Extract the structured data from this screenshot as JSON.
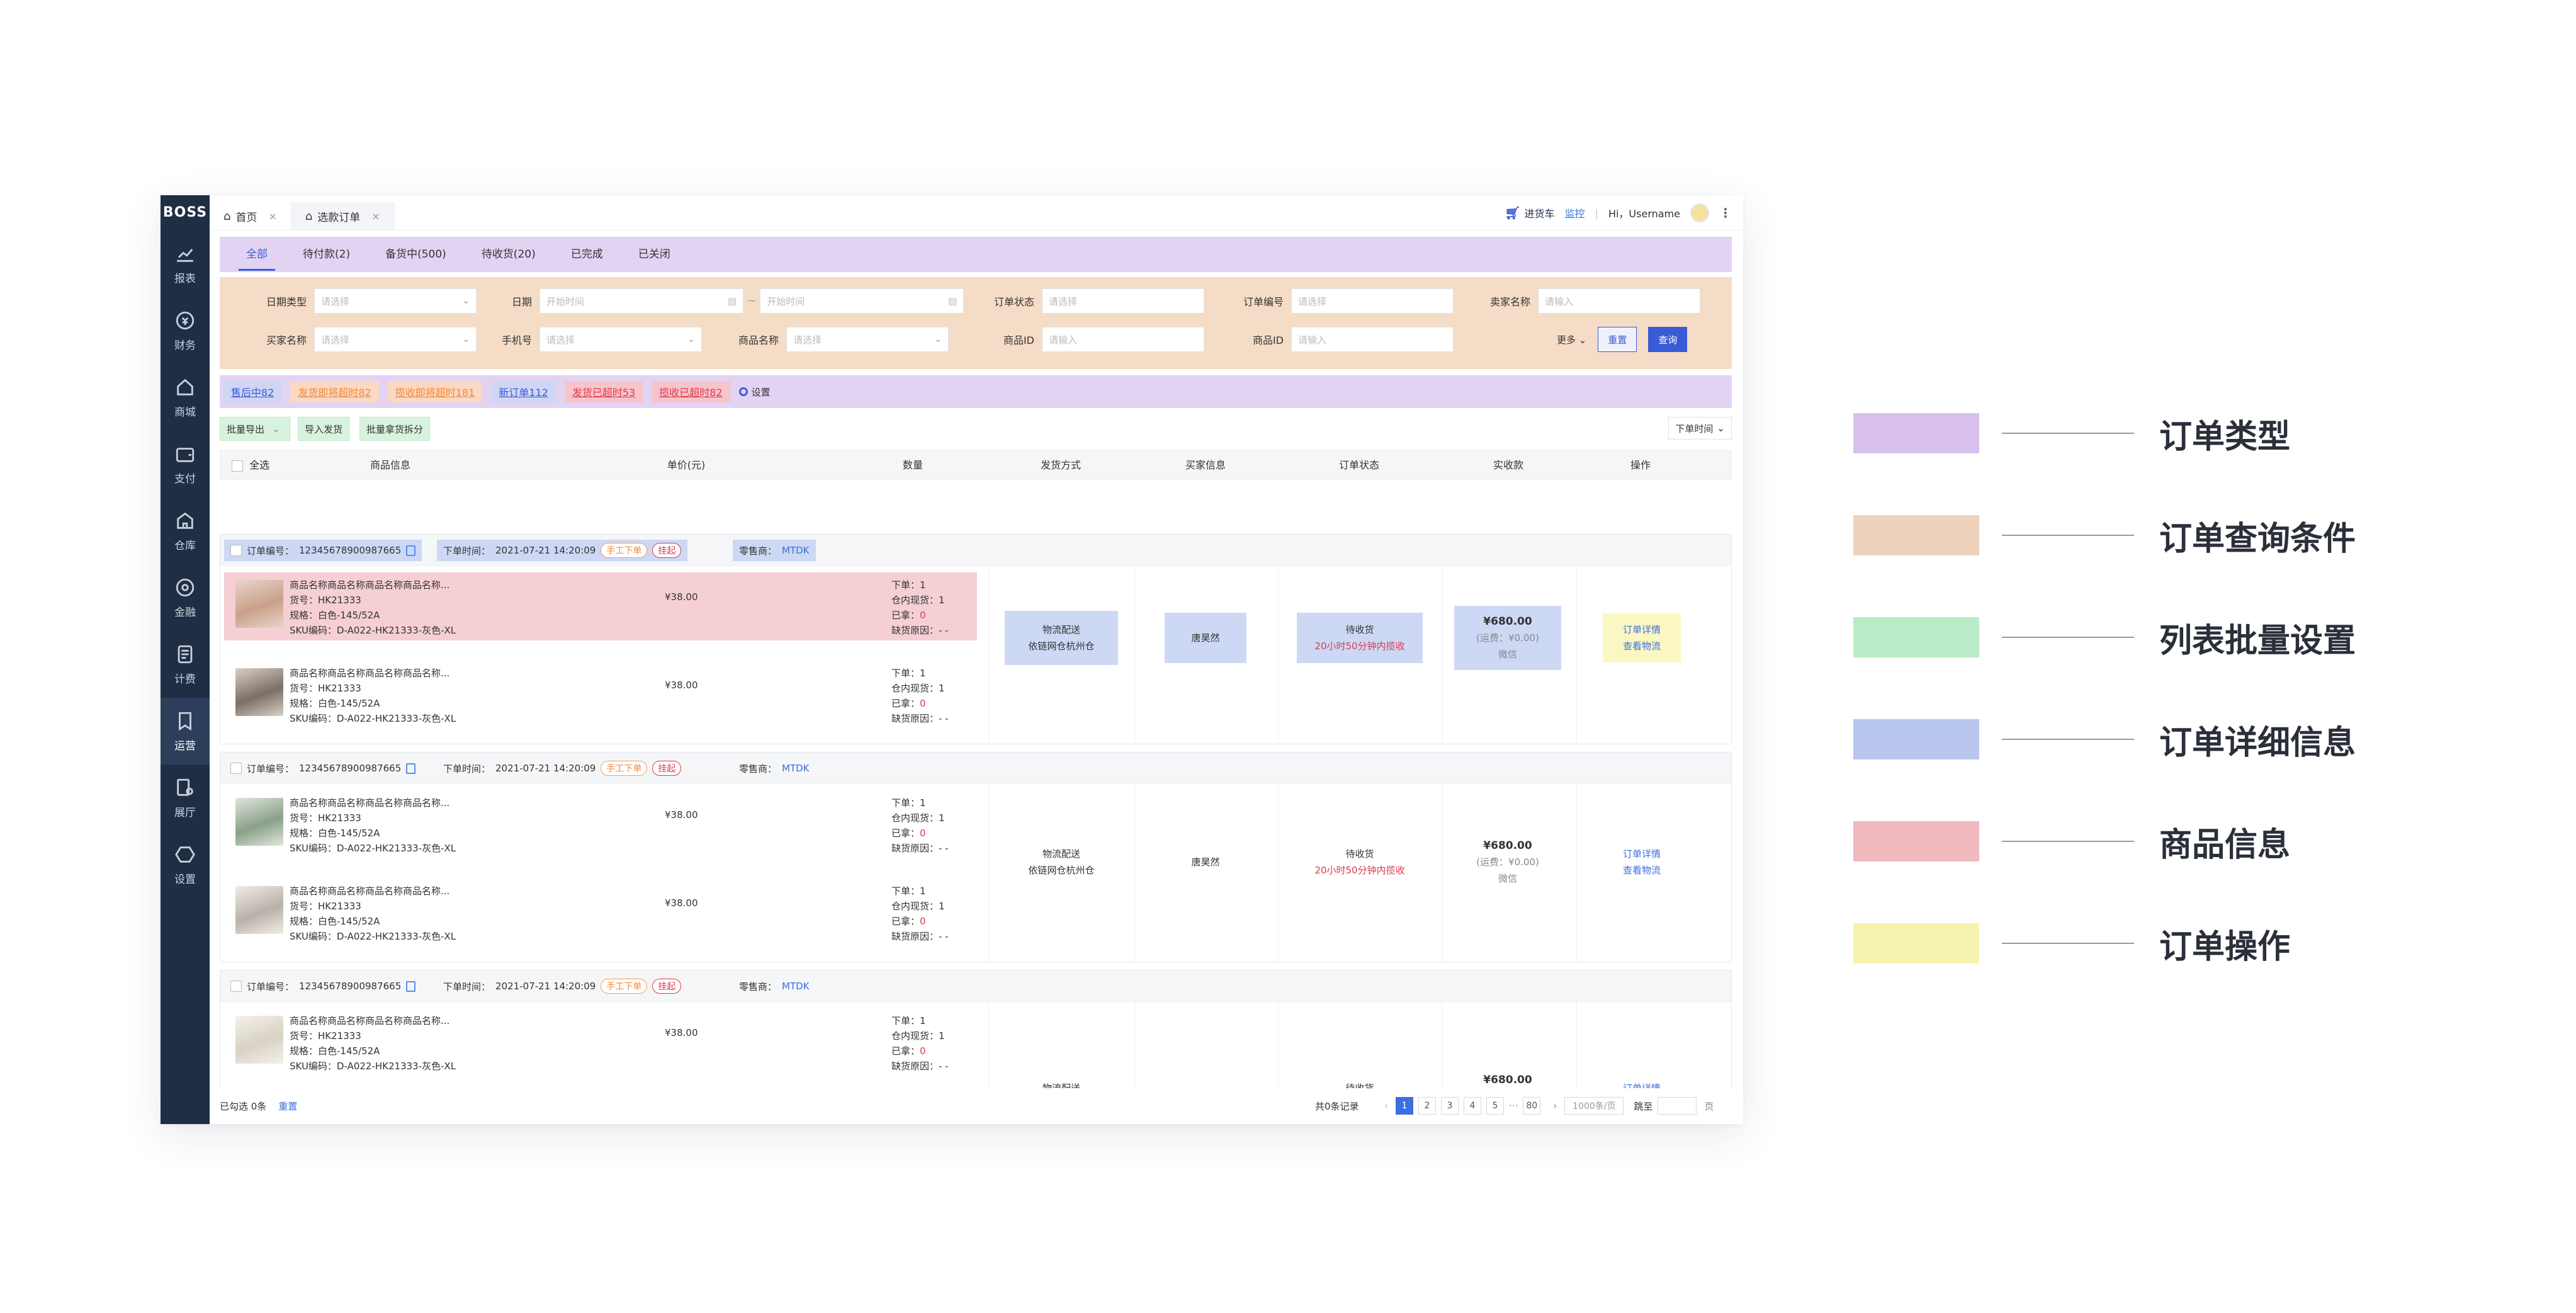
{
  "brand": "BOSS",
  "nav": [
    {
      "icon": "chart-line-icon",
      "label": "报表"
    },
    {
      "icon": "finance-coin-icon",
      "label": "财务"
    },
    {
      "icon": "shop-home-icon",
      "label": "商城"
    },
    {
      "icon": "wallet-icon",
      "label": "支付"
    },
    {
      "icon": "warehouse-icon",
      "label": "仓库"
    },
    {
      "icon": "finance-circle-icon",
      "label": "金融"
    },
    {
      "icon": "billing-icon",
      "label": "计费"
    },
    {
      "icon": "operation-icon",
      "label": "运营"
    },
    {
      "icon": "showroom-icon",
      "label": "展厅"
    },
    {
      "icon": "settings-hex-icon",
      "label": "设置"
    }
  ],
  "tabs": [
    {
      "label": "首页",
      "close": "×"
    },
    {
      "label": "选款订单",
      "close": "×"
    }
  ],
  "topbar": {
    "cart": "进货车",
    "monitor": "监控",
    "sep": "|",
    "greeting": "Hi，Username",
    "kebab": "⋮"
  },
  "status_tabs": [
    "全部",
    "待付款(2)",
    "备货中(500)",
    "待收货(20)",
    "已完成",
    "已关闭"
  ],
  "filters": {
    "date_type": {
      "label": "日期类型",
      "placeholder": "请选择"
    },
    "date": {
      "label": "日期",
      "start": "开始时间",
      "dash": "~",
      "end": "开始时间"
    },
    "order_status": {
      "label": "订单状态",
      "placeholder": "请选择"
    },
    "order_no": {
      "label": "订单编号",
      "placeholder": "请选择"
    },
    "seller": {
      "label": "卖家名称",
      "placeholder": "请输入"
    },
    "buyer": {
      "label": "买家名称",
      "placeholder": "请选择"
    },
    "phone": {
      "label": "手机号",
      "placeholder": "请选择"
    },
    "product_name": {
      "label": "商品名称",
      "placeholder": "请选择"
    },
    "product_id1": {
      "label": "商品ID",
      "placeholder": "请输入"
    },
    "product_id2": {
      "label": "商品ID",
      "placeholder": "请输入"
    },
    "more": "更多",
    "reset": "重置",
    "query": "查询"
  },
  "quick_tags": [
    "售后中82",
    "发货即将超时82",
    "揽收即将超时181",
    "新订单112",
    "发货已超时53",
    "揽收已超时82"
  ],
  "quick_setting": "设置",
  "batch": {
    "export": "批量导出",
    "import": "导入发货",
    "split": "批量拿货拆分",
    "sort": "下单时间"
  },
  "table_headers": {
    "select_all": "全选",
    "product": "商品信息",
    "price": "单价(元)",
    "qty": "数量",
    "shipping": "发货方式",
    "buyer": "买家信息",
    "status": "订单状态",
    "paid": "实收款",
    "ops": "操作"
  },
  "order_template": {
    "no_label": "订单编号：",
    "no": "12345678900987665",
    "time_label": "下单时间：",
    "time": "2021-07-21 14:20:09",
    "manual": "手工下单",
    "hang": "挂起",
    "retailer_label": "零售商：",
    "retailer": "MTDK",
    "product_name": "商品名称商品名称商品名称商品名称...",
    "goods_no": "货号：HK21333",
    "spec": "规格：白色-145/52A",
    "sku": "SKU编码：D-A022-HK21333-灰色-XL",
    "price": "¥38.00",
    "order_qty": "下单：1",
    "stock_qty": "仓内现货：1",
    "taken_label": "已拿：",
    "taken": "0",
    "shortage": "缺货原因：- -",
    "ship1": "物流配送",
    "ship2": "依链网仓杭州仓",
    "buyer": "唐昊然",
    "status": "待收货",
    "status_tip": "20小时50分钟内揽收",
    "amount": "¥680.00",
    "freight": "(运费：¥0.00)",
    "pay": "微信",
    "detail": "订单详情",
    "logistics": "查看物流"
  },
  "pager": {
    "selected": "已勾选 0条",
    "reset": "重置",
    "total": "共0条记录",
    "pages": [
      "1",
      "2",
      "3",
      "4",
      "5",
      "···",
      "80"
    ],
    "per_page": "1000条/页",
    "jump": "跳至",
    "page_unit": "页"
  },
  "legend": [
    {
      "label": "订单类型",
      "color": "#d8c1ef"
    },
    {
      "label": "订单查询条件",
      "color": "#efd2bb"
    },
    {
      "label": "列表批量设置",
      "color": "#b9ecc7"
    },
    {
      "label": "订单详细信息",
      "color": "#b8c6ee"
    },
    {
      "label": "商品信息",
      "color": "#efb9be"
    },
    {
      "label": "订单操作",
      "color": "#f6f2b0"
    }
  ]
}
